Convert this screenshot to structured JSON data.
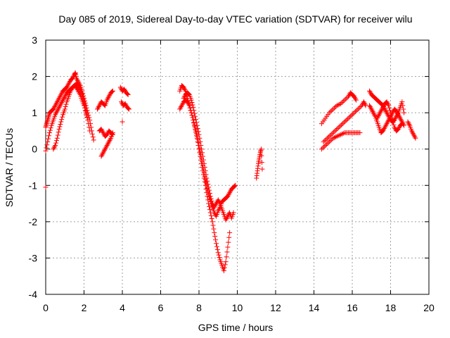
{
  "chart_data": {
    "type": "scatter",
    "title": "Day 085 of 2019, Sidereal Day-to-day VTEC variation (SDTVAR) for receiver wilu",
    "xlabel": "GPS time / hours",
    "ylabel": "SDTVAR / TECUs",
    "xlim": [
      0,
      20
    ],
    "ylim": [
      -4,
      3
    ],
    "xticks": [
      0,
      2,
      4,
      6,
      8,
      10,
      12,
      14,
      16,
      18,
      20
    ],
    "yticks": [
      -4,
      -3,
      -2,
      -1,
      0,
      1,
      2,
      3
    ],
    "grid": true,
    "legend": "none",
    "marker": "+",
    "series": [
      {
        "name": "SDTVAR",
        "color": "#ff0000",
        "segments": [
          {
            "x": [
              0.0,
              0.05,
              0.1,
              0.15,
              0.2,
              0.3,
              0.4,
              0.5,
              0.6,
              0.7,
              0.8,
              0.9,
              1.0,
              1.1,
              1.2,
              1.3,
              1.4,
              1.5,
              1.55,
              1.6,
              1.7,
              1.8,
              1.9,
              2.0,
              2.1,
              2.2,
              2.3,
              2.4,
              2.5
            ],
            "y": [
              0.6,
              0.7,
              0.8,
              0.9,
              1.0,
              1.05,
              1.1,
              1.2,
              1.3,
              1.4,
              1.5,
              1.6,
              1.65,
              1.7,
              1.8,
              1.9,
              1.95,
              2.05,
              2.1,
              1.95,
              1.85,
              1.75,
              1.6,
              1.4,
              1.2,
              1.0,
              0.8,
              0.5,
              0.25
            ]
          },
          {
            "x": [
              0.0,
              0.1,
              0.2,
              0.3,
              0.4,
              0.5,
              0.6,
              0.7,
              0.8,
              0.9,
              1.0,
              1.1,
              1.2,
              1.3,
              1.4,
              1.5,
              1.6,
              1.7,
              1.8,
              1.9,
              2.0,
              2.1,
              2.2
            ],
            "y": [
              -0.05,
              0.2,
              0.45,
              0.65,
              0.8,
              0.95,
              1.05,
              1.15,
              1.25,
              1.35,
              1.45,
              1.55,
              1.6,
              1.65,
              1.7,
              1.75,
              1.7,
              1.6,
              1.5,
              1.35,
              1.2,
              1.0,
              0.8
            ]
          },
          {
            "x": [
              0.4,
              0.5,
              0.6,
              0.7,
              0.8,
              0.9,
              1.0,
              1.1,
              1.2,
              1.3,
              1.4,
              1.5,
              1.6,
              1.7,
              1.8,
              1.9,
              2.0,
              2.1,
              2.2,
              2.3
            ],
            "y": [
              0.0,
              0.1,
              0.3,
              0.55,
              0.75,
              0.95,
              1.1,
              1.3,
              1.45,
              1.6,
              1.7,
              1.75,
              1.8,
              1.75,
              1.65,
              1.5,
              1.3,
              1.05,
              0.8,
              0.5
            ]
          },
          {
            "x": [
              0.0
            ],
            "y": [
              -1.05
            ]
          },
          {
            "x": [
              2.7,
              2.8,
              2.9,
              3.0,
              3.1,
              3.2,
              3.3,
              3.4,
              3.5
            ],
            "y": [
              1.1,
              1.2,
              1.3,
              1.25,
              1.2,
              1.35,
              1.45,
              1.55,
              1.6
            ]
          },
          {
            "x": [
              2.8,
              2.9,
              3.0,
              3.1,
              3.2,
              3.3,
              3.4,
              3.5
            ],
            "y": [
              0.5,
              0.55,
              0.45,
              0.35,
              0.4,
              0.5,
              0.45,
              0.4
            ]
          },
          {
            "x": [
              2.9,
              3.0,
              3.1,
              3.2,
              3.3,
              3.4,
              3.5
            ],
            "y": [
              -0.2,
              -0.1,
              0.0,
              0.1,
              0.2,
              0.3,
              0.45
            ]
          },
          {
            "x": [
              3.9,
              4.0,
              4.1,
              4.2,
              4.3
            ],
            "y": [
              1.7,
              1.6,
              1.65,
              1.55,
              1.5
            ]
          },
          {
            "x": [
              3.95,
              4.05,
              4.15,
              4.25,
              4.35
            ],
            "y": [
              1.3,
              1.2,
              1.25,
              1.15,
              1.1
            ]
          },
          {
            "x": [
              4.0
            ],
            "y": [
              0.75
            ]
          },
          {
            "x": [
              7.0,
              7.1,
              7.2,
              7.3,
              7.4,
              7.5,
              7.6,
              7.7,
              7.8,
              7.9,
              8.0,
              8.1,
              8.2,
              8.3,
              8.4,
              8.5,
              8.6,
              8.7,
              8.8,
              8.9,
              9.0,
              9.1,
              9.2,
              9.3,
              9.4,
              9.5,
              9.6
            ],
            "y": [
              1.6,
              1.75,
              1.7,
              1.6,
              1.4,
              1.2,
              1.0,
              0.8,
              0.55,
              0.3,
              0.0,
              -0.3,
              -0.6,
              -0.9,
              -1.2,
              -1.5,
              -1.75,
              -2.0,
              -2.3,
              -2.6,
              -2.85,
              -3.05,
              -3.2,
              -3.35,
              -3.1,
              -2.7,
              -2.3
            ]
          },
          {
            "x": [
              7.0,
              7.1,
              7.2,
              7.3,
              7.4,
              7.5,
              7.6,
              7.7,
              7.8,
              7.9,
              8.0,
              8.1,
              8.2,
              8.3,
              8.4,
              8.5,
              8.6,
              8.7,
              8.8,
              8.9,
              9.0,
              9.1,
              9.2,
              9.3,
              9.4,
              9.5,
              9.6,
              9.7,
              9.8,
              9.9
            ],
            "y": [
              1.1,
              1.2,
              1.3,
              1.35,
              1.3,
              1.2,
              1.0,
              0.8,
              0.6,
              0.35,
              0.1,
              -0.15,
              -0.45,
              -0.75,
              -1.0,
              -1.25,
              -1.45,
              -1.6,
              -1.75,
              -1.85,
              -1.7,
              -1.6,
              -1.45,
              -1.4,
              -1.35,
              -1.3,
              -1.2,
              -1.1,
              -1.05,
              -1.0
            ]
          },
          {
            "x": [
              7.2,
              7.3,
              7.4,
              7.5,
              7.6,
              7.7,
              7.8,
              7.9,
              8.0,
              8.1,
              8.2,
              8.3,
              8.4,
              8.5,
              8.6,
              8.7,
              8.8,
              8.9,
              9.0,
              9.1,
              9.2,
              9.3,
              9.4,
              9.5,
              9.6,
              9.7,
              9.8
            ],
            "y": [
              1.4,
              1.5,
              1.55,
              1.5,
              1.35,
              1.15,
              0.9,
              0.65,
              0.4,
              0.1,
              -0.2,
              -0.5,
              -0.8,
              -1.05,
              -1.3,
              -1.5,
              -1.6,
              -1.5,
              -1.4,
              -1.5,
              -1.65,
              -1.8,
              -1.95,
              -1.85,
              -1.75,
              -1.9,
              -1.75
            ]
          },
          {
            "x": [
              11.0,
              11.05,
              11.1,
              11.15,
              11.2,
              11.25,
              11.3
            ],
            "y": [
              -0.8,
              -0.6,
              -0.4,
              -0.25,
              -0.1,
              0.0,
              -0.55
            ]
          },
          {
            "x": [
              14.4,
              14.6,
              14.8,
              15.0,
              15.2,
              15.4,
              15.6,
              15.8,
              15.9,
              16.0,
              16.1,
              16.2
            ],
            "y": [
              0.7,
              0.85,
              1.0,
              1.1,
              1.2,
              1.25,
              1.35,
              1.45,
              1.55,
              1.5,
              1.45,
              1.35
            ]
          },
          {
            "x": [
              14.5,
              14.7,
              14.9,
              15.1,
              15.3,
              15.5,
              15.7,
              15.9,
              16.1,
              16.3,
              16.5,
              16.6,
              16.7
            ],
            "y": [
              0.2,
              0.3,
              0.4,
              0.5,
              0.6,
              0.7,
              0.8,
              0.9,
              1.0,
              1.1,
              1.2,
              1.3,
              1.2
            ]
          },
          {
            "x": [
              14.4,
              14.6,
              14.8,
              15.0,
              15.2,
              15.4,
              15.6,
              15.8,
              16.0,
              16.2,
              16.4
            ],
            "y": [
              0.0,
              0.1,
              0.2,
              0.3,
              0.35,
              0.4,
              0.45,
              0.45,
              0.45,
              0.45,
              0.45
            ]
          },
          {
            "x": [
              16.9,
              17.0,
              17.1,
              17.2,
              17.3,
              17.4,
              17.5,
              17.6,
              17.7,
              17.8,
              17.9,
              18.0,
              18.1,
              18.2,
              18.3,
              18.4,
              18.5,
              18.6,
              18.7
            ],
            "y": [
              1.6,
              1.5,
              1.45,
              1.4,
              1.35,
              1.3,
              1.25,
              1.2,
              1.1,
              1.0,
              0.9,
              0.8,
              0.75,
              0.8,
              0.9,
              1.0,
              1.15,
              1.3,
              1.0
            ]
          },
          {
            "x": [
              16.9,
              17.0,
              17.1,
              17.2,
              17.3,
              17.4,
              17.5,
              17.6,
              17.7,
              17.8,
              17.9,
              18.0,
              18.1,
              18.2,
              18.3,
              18.4,
              18.5,
              18.6,
              18.7
            ],
            "y": [
              1.2,
              1.1,
              1.0,
              0.9,
              0.75,
              0.6,
              0.45,
              0.5,
              0.6,
              0.7,
              0.8,
              0.9,
              1.0,
              1.1,
              1.05,
              0.95,
              0.85,
              0.75,
              0.65
            ]
          },
          {
            "x": [
              17.3,
              17.4,
              17.5,
              17.6,
              17.7,
              17.8,
              17.9,
              18.0,
              18.1,
              18.2,
              18.3,
              18.4,
              18.5,
              18.6
            ],
            "y": [
              0.85,
              0.95,
              1.05,
              1.15,
              1.25,
              1.3,
              1.2,
              1.0,
              0.8,
              0.6,
              0.5,
              0.55,
              0.65,
              0.7
            ]
          },
          {
            "x": [
              18.9,
              19.0,
              19.1,
              19.2,
              19.3
            ],
            "y": [
              0.75,
              0.65,
              0.5,
              0.4,
              0.3
            ]
          }
        ]
      }
    ]
  }
}
